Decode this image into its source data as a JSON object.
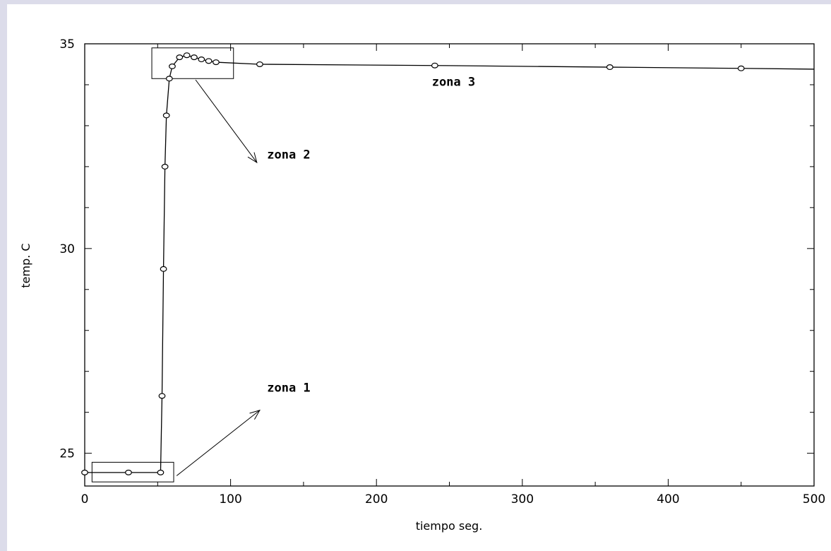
{
  "chart_data": {
    "type": "line",
    "title": "",
    "xlabel": "tiempo seg.",
    "ylabel": "temp. C",
    "xlim": [
      0,
      500
    ],
    "ylim": [
      24.2,
      35
    ],
    "x_ticks": [
      0,
      100,
      200,
      300,
      400,
      500
    ],
    "y_ticks": [
      25,
      30,
      35
    ],
    "grid": false,
    "series": [
      {
        "markers": "open-circle",
        "points": [
          [
            0,
            24.53
          ],
          [
            30,
            24.53
          ],
          [
            52,
            24.53
          ],
          [
            53,
            26.4
          ],
          [
            54,
            29.5
          ],
          [
            55,
            32.0
          ],
          [
            56,
            33.25
          ],
          [
            58,
            34.15
          ],
          [
            60,
            34.45
          ],
          [
            65,
            34.67
          ],
          [
            70,
            34.72
          ],
          [
            75,
            34.67
          ],
          [
            80,
            34.62
          ],
          [
            85,
            34.58
          ],
          [
            90,
            34.55
          ],
          [
            120,
            34.5
          ],
          [
            240,
            34.47
          ],
          [
            360,
            34.43
          ],
          [
            450,
            34.4
          ],
          [
            500,
            34.38
          ]
        ]
      }
    ],
    "annotations": [
      {
        "text": "zona 1",
        "box": {
          "x": [
            5,
            61
          ],
          "y": [
            24.3,
            24.78
          ]
        },
        "anchor_x": 63,
        "anchor_y": 24.45,
        "arrow_to_x": 120,
        "arrow_to_y": 26.05,
        "label_x": 125,
        "label_y": 26.5
      },
      {
        "text": "zona 2",
        "box": {
          "x": [
            46,
            102
          ],
          "y": [
            34.15,
            34.9
          ]
        },
        "anchor_x": 76,
        "anchor_y": 34.12,
        "arrow_to_x": 118,
        "arrow_to_y": 32.1,
        "label_x": 125,
        "label_y": 32.2
      },
      {
        "text": "zona 3",
        "label_x": 238,
        "label_y": 33.97
      }
    ]
  }
}
